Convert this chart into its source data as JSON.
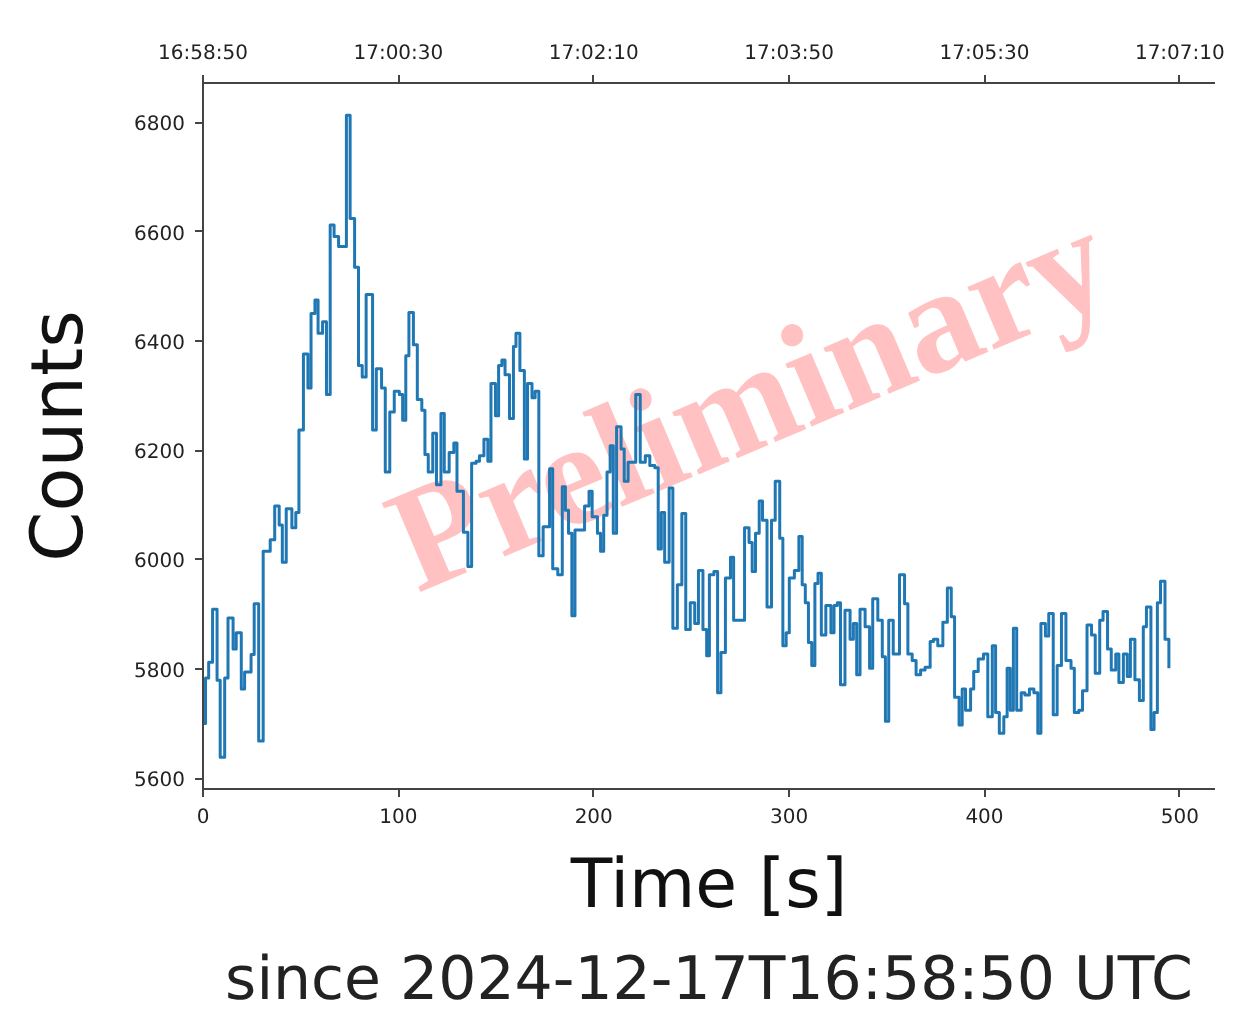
{
  "chart_data": {
    "type": "step",
    "xlabel": "Time [s]",
    "ylabel": "Counts",
    "annotations": [
      "since 2024-12-17T16:58:50 UTC",
      "Preliminary"
    ],
    "xlim": [
      0,
      518
    ],
    "xticks": [
      0,
      100,
      200,
      300,
      400,
      500
    ],
    "x2lim": [
      16.980556,
      17.124444
    ],
    "x2ticks": [
      {
        "value": 16.980556,
        "label": "16:58:50"
      },
      {
        "value": 17.008333,
        "label": "17:00:30"
      },
      {
        "value": 17.036111,
        "label": "17:02:10"
      },
      {
        "value": 17.063889,
        "label": "17:03:50"
      },
      {
        "value": 17.091667,
        "label": "17:05:30"
      },
      {
        "value": 17.119444,
        "label": "17:07:10"
      }
    ],
    "ylim": [
      5580,
      6872
    ],
    "yticks": [
      5600,
      5800,
      6000,
      6200,
      6400,
      6600,
      6800
    ],
    "x": [
      0,
      1.3,
      2.9,
      4.9,
      7.2,
      8.8,
      11.1,
      12.8,
      15.4,
      17.0,
      19.6,
      21.3,
      24.6,
      26.2,
      28.5,
      30.8,
      34.4,
      36.7,
      39.0,
      40.6,
      42.6,
      45.5,
      47.5,
      49.1,
      51.4,
      53.7,
      55.3,
      57.3,
      58.9,
      61.2,
      63.2,
      65.1,
      67.1,
      69.4,
      73.4,
      75.3,
      77.6,
      79.6,
      81.5,
      83.5,
      86.8,
      88.7,
      91.4,
      93.3,
      95.6,
      97.9,
      100.5,
      102.2,
      103.8,
      105.4,
      107.7,
      109.7,
      112.0,
      113.6,
      115.3,
      117.6,
      119.5,
      121.8,
      123.5,
      126.0,
      128.4,
      130.0,
      133.3,
      135.6,
      137.5,
      139.8,
      141.5,
      143.8,
      145.8,
      147.4,
      149.7,
      151.3,
      153.0,
      154.6,
      156.9,
      158.9,
      160.2,
      162.2,
      164.5,
      166.1,
      168.4,
      170.0,
      171.9,
      174.1,
      177.4,
      179.0,
      181.6,
      183.9,
      185.5,
      187.1,
      188.8,
      190.4,
      195.3,
      197.6,
      199.2,
      201.9,
      203.5,
      205.1,
      206.8,
      208.4,
      210.0,
      211.7,
      214.0,
      215.6,
      217.6,
      221.5,
      223.8,
      226.4,
      228.7,
      231.3,
      233.0,
      234.6,
      236.3,
      238.6,
      240.5,
      242.8,
      245.1,
      247.1,
      249.4,
      251.7,
      253.6,
      255.9,
      257.8,
      259.2,
      261.5,
      263.4,
      265.1,
      267.4,
      270.0,
      271.6,
      277.2,
      279.5,
      281.1,
      282.8,
      284.7,
      286.4,
      288.7,
      291.0,
      292.9,
      295.2,
      296.8,
      298.5,
      300.1,
      302.7,
      305.0,
      306.7,
      308.3,
      309.9,
      311.6,
      313.2,
      314.8,
      316.5,
      318.8,
      321.4,
      323.0,
      324.7,
      326.3,
      328.6,
      331.2,
      332.9,
      334.6,
      336.3,
      338.9,
      341.2,
      342.8,
      345.4,
      347.7,
      349.3,
      351.0,
      353.3,
      356.5,
      359.1,
      360.8,
      363.0,
      365.0,
      367.3,
      369.6,
      372.2,
      373.9,
      376.1,
      378.7,
      381.0,
      383.0,
      384.7,
      387.0,
      388.6,
      390.3,
      392.9,
      394.5,
      396.8,
      399.5,
      401.7,
      404.0,
      405.7,
      407.6,
      409.9,
      411.6,
      413.2,
      414.8,
      416.5,
      418.8,
      420.7,
      423.0,
      425.3,
      427.3,
      428.9,
      431.2,
      432.9,
      435.2,
      437.2,
      439.4,
      441.7,
      444.3,
      446.0,
      448.3,
      450.2,
      452.5,
      454.8,
      456.7,
      459.0,
      460.7,
      463.0,
      464.9,
      467.2,
      468.8,
      471.1,
      473.1,
      474.7,
      477.0,
      479.3,
      481.3,
      482.9,
      485.2,
      486.8,
      488.5,
      490.1,
      492.4,
      494.4
    ],
    "series": [
      {
        "color": "#1f77b4",
        "values": [
          5700,
          5783,
          5812,
          5909,
          5779,
          5638,
          5783,
          5893,
          5836,
          5866,
          5763,
          5794,
          5826,
          5919,
          5668,
          6015,
          6036,
          6098,
          6063,
          5995,
          6093,
          6058,
          6086,
          6237,
          6376,
          6314,
          6450,
          6475,
          6414,
          6435,
          6302,
          6612,
          6591,
          6573,
          6813,
          6624,
          6535,
          6355,
          6334,
          6485,
          6237,
          6349,
          6314,
          6160,
          6270,
          6308,
          6302,
          6255,
          6373,
          6452,
          6393,
          6293,
          6273,
          6192,
          6160,
          6231,
          6137,
          6267,
          6160,
          6196,
          6213,
          6125,
          6050,
          5987,
          6176,
          6180,
          6190,
          6220,
          6180,
          6322,
          6263,
          6355,
          6365,
          6338,
          6258,
          6390,
          6414,
          6346,
          6184,
          6322,
          6296,
          6308,
          6007,
          6060,
          6166,
          5983,
          5972,
          6133,
          6090,
          6048,
          5897,
          6054,
          6098,
          6125,
          6078,
          6048,
          6015,
          6081,
          6160,
          6208,
          6048,
          6243,
          6202,
          6143,
          6178,
          6302,
          6178,
          6190,
          6172,
          6168,
          6019,
          6086,
          5995,
          6131,
          5874,
          5954,
          6084,
          5872,
          5921,
          5883,
          5980,
          5872,
          5824,
          5972,
          5978,
          5756,
          5830,
          5966,
          6004,
          5889,
          6058,
          6031,
          5978,
          6048,
          6107,
          6072,
          5913,
          6072,
          6143,
          6039,
          5842,
          5866,
          5966,
          5980,
          6042,
          5954,
          5921,
          5848,
          5806,
          5956,
          5975,
          5862,
          5916,
          5866,
          5916,
          5921,
          5771,
          5907,
          5854,
          5883,
          5789,
          5909,
          5877,
          5801,
          5928,
          5889,
          5822,
          5704,
          5889,
          5827,
          5972,
          5919,
          5827,
          5815,
          5789,
          5798,
          5803,
          5850,
          5854,
          5842,
          5885,
          5948,
          5895,
          5748,
          5697,
          5763,
          5724,
          5763,
          5795,
          5818,
          5827,
          5712,
          5842,
          5720,
          5682,
          5712,
          5801,
          5724,
          5874,
          5724,
          5756,
          5752,
          5763,
          5756,
          5682,
          5883,
          5860,
          5901,
          5716,
          5806,
          5901,
          5815,
          5801,
          5720,
          5724,
          5760,
          5880,
          5862,
          5792,
          5889,
          5905,
          5836,
          5798,
          5827,
          5775,
          5827,
          5786,
          5854,
          5780,
          5742,
          5877,
          5913,
          5689,
          5720,
          5921,
          5960,
          5854,
          5801
        ]
      }
    ]
  }
}
